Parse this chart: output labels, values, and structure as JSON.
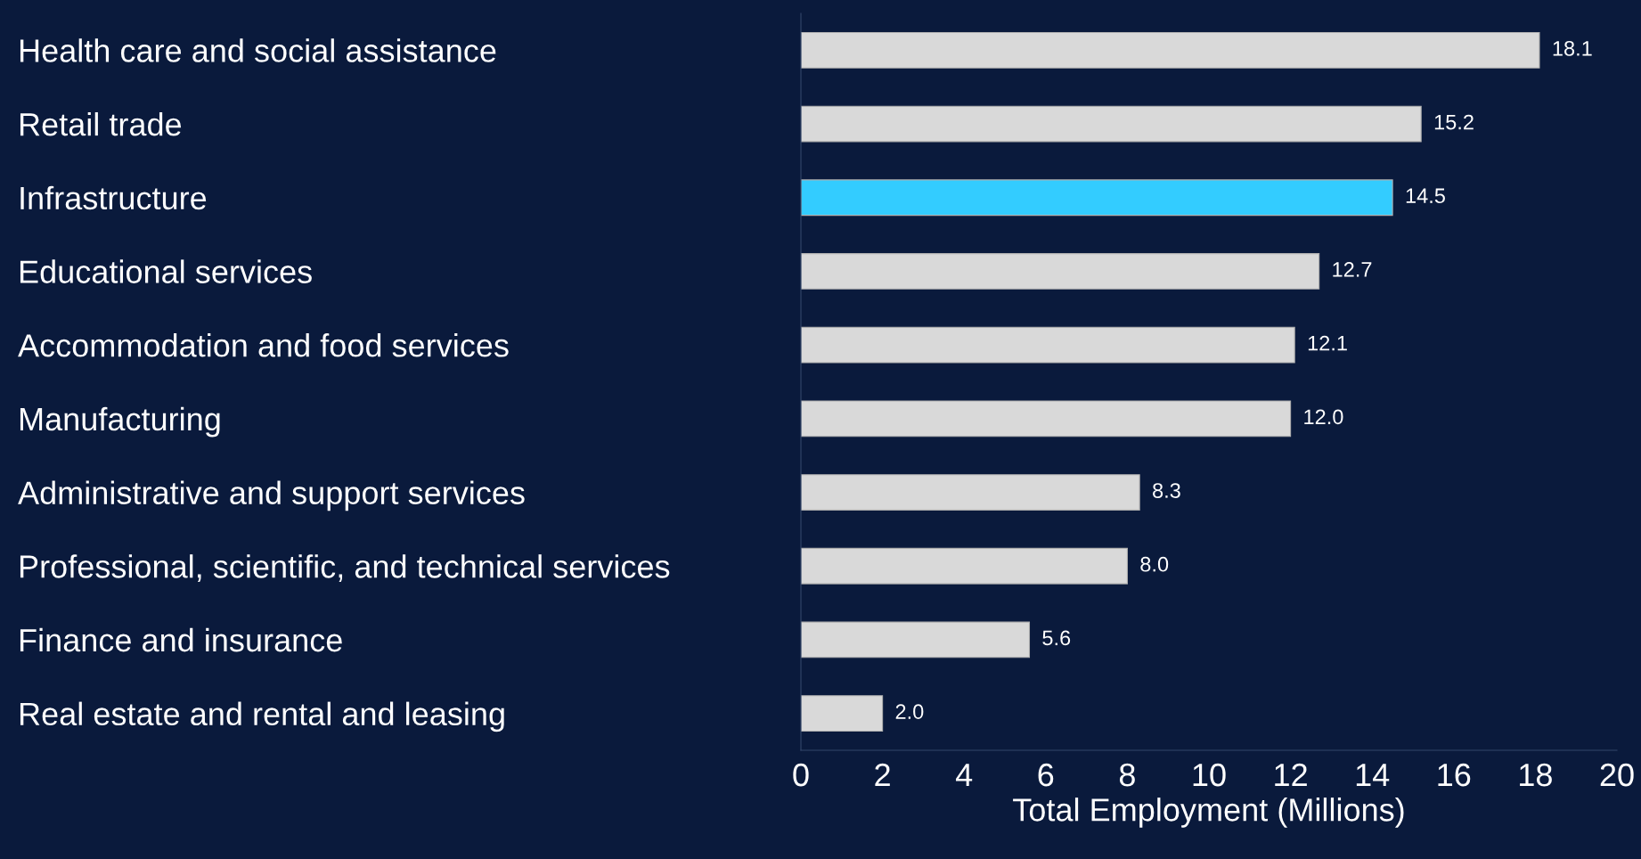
{
  "chart_data": {
    "type": "bar",
    "orientation": "horizontal",
    "xlabel": "Total Employment (Millions)",
    "categories": [
      "Health care and social assistance",
      "Retail trade",
      "Infrastructure",
      "Educational services",
      "Accommodation and food services",
      "Manufacturing",
      "Administrative and support services",
      "Professional, scientific, and technical services",
      "Finance and insurance",
      "Real estate and rental and leasing"
    ],
    "values": [
      18.1,
      15.2,
      14.5,
      12.7,
      12.1,
      12.0,
      8.3,
      8.0,
      5.6,
      2.0
    ],
    "value_labels": [
      "18.1",
      "15.2",
      "14.5",
      "12.7",
      "12.1",
      "12.0",
      "8.3",
      "8.0",
      "5.6",
      "2.0"
    ],
    "colors": [
      "#d9d9d9",
      "#d9d9d9",
      "#33ccff",
      "#d9d9d9",
      "#d9d9d9",
      "#d9d9d9",
      "#d9d9d9",
      "#d9d9d9",
      "#d9d9d9",
      "#d9d9d9"
    ],
    "xlim": [
      0,
      20
    ],
    "xticks": [
      0,
      2,
      4,
      6,
      8,
      10,
      12,
      14,
      16,
      18,
      20
    ],
    "grid": false,
    "legend": false
  }
}
